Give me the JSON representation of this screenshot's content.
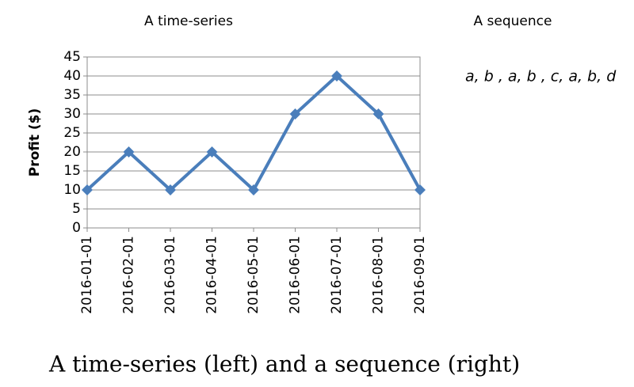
{
  "chart_data": {
    "type": "line",
    "title": "A time-series",
    "y_label": "Profit ($)",
    "categories": [
      "2016-01-01",
      "2016-02-01",
      "2016-03-01",
      "2016-04-01",
      "2016-05-01",
      "2016-06-01",
      "2016-07-01",
      "2016-08-01",
      "2016-09-01"
    ],
    "series": [
      {
        "name": "Profit",
        "color": "#4a7ebb",
        "values": [
          10,
          20,
          10,
          20,
          10,
          30,
          40,
          30,
          10
        ]
      }
    ],
    "ylim": [
      0,
      45
    ],
    "yticks": [
      0,
      5,
      10,
      15,
      20,
      25,
      30,
      35,
      40,
      45
    ],
    "grid": true
  },
  "sequence": {
    "title": "A sequence",
    "text": "a, b , a, b , c, a, b, d"
  },
  "caption": "A time-series (left) and a sequence (right)"
}
